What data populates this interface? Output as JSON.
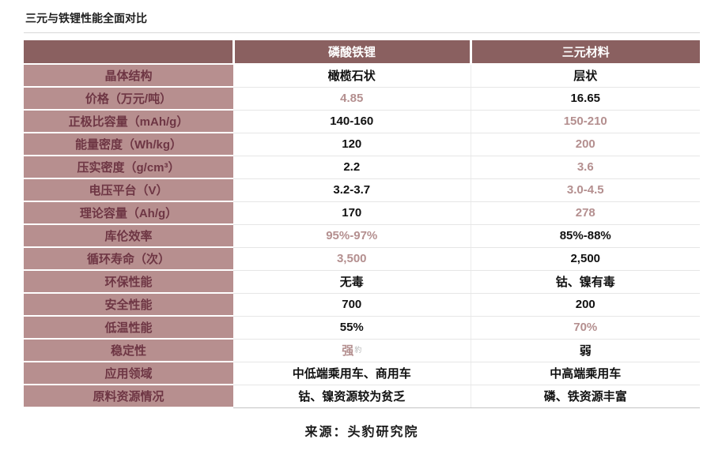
{
  "chart_data": {
    "type": "table",
    "title": "三元与铁锂性能全面对比",
    "source": "来源：头豹研究院",
    "columns": [
      "",
      "磷酸铁锂",
      "三元材料"
    ],
    "rows": [
      {
        "label": "晶体结构",
        "lfp": "橄榄石状",
        "ternary": "层状",
        "lfp_accent": false,
        "ternary_accent": false
      },
      {
        "label": "价格（万元/吨）",
        "lfp": "4.85",
        "ternary": "16.65",
        "lfp_accent": true,
        "ternary_accent": false
      },
      {
        "label": "正极比容量（mAh/g）",
        "lfp": "140-160",
        "ternary": "150-210",
        "lfp_accent": false,
        "ternary_accent": true
      },
      {
        "label": "能量密度（Wh/kg）",
        "lfp": "120",
        "ternary": "200",
        "lfp_accent": false,
        "ternary_accent": true
      },
      {
        "label": "压实密度（g/cm³）",
        "lfp": "2.2",
        "ternary": "3.6",
        "lfp_accent": false,
        "ternary_accent": true
      },
      {
        "label": "电压平台（V）",
        "lfp": "3.2-3.7",
        "ternary": "3.0-4.5",
        "lfp_accent": false,
        "ternary_accent": true
      },
      {
        "label": "理论容量（Ah/g）",
        "lfp": "170",
        "ternary": "278",
        "lfp_accent": false,
        "ternary_accent": true
      },
      {
        "label": "库伦效率",
        "lfp": "95%-97%",
        "ternary": "85%-88%",
        "lfp_accent": true,
        "ternary_accent": false
      },
      {
        "label": "循环寿命（次）",
        "lfp": "3,500",
        "ternary": "2,500",
        "lfp_accent": true,
        "ternary_accent": false
      },
      {
        "label": "环保性能",
        "lfp": "无毒",
        "ternary": "钴、镍有毒",
        "lfp_accent": false,
        "ternary_accent": false
      },
      {
        "label": "安全性能",
        "lfp": "700",
        "ternary": "200",
        "lfp_accent": false,
        "ternary_accent": false
      },
      {
        "label": "低温性能",
        "lfp": "55%",
        "ternary": "70%",
        "lfp_accent": false,
        "ternary_accent": true
      },
      {
        "label": "稳定性",
        "lfp": "强",
        "ternary": "弱",
        "lfp_accent": true,
        "ternary_accent": false,
        "lfp_note": "豹"
      },
      {
        "label": "应用领域",
        "lfp": "中低端乘用车、商用车",
        "ternary": "中高端乘用车",
        "lfp_accent": false,
        "ternary_accent": false
      },
      {
        "label": "原料资源情况",
        "lfp": "钴、镍资源较为贫乏",
        "ternary": "磷、铁资源丰富",
        "lfp_accent": false,
        "ternary_accent": false
      }
    ]
  },
  "colors": {
    "header_bg": "#8a6060",
    "header_text": "#ffffff",
    "label_bg": "#b78f8f",
    "label_text": "#6e3644",
    "accent_text": "#b48f8f",
    "value_text": "#111111"
  }
}
